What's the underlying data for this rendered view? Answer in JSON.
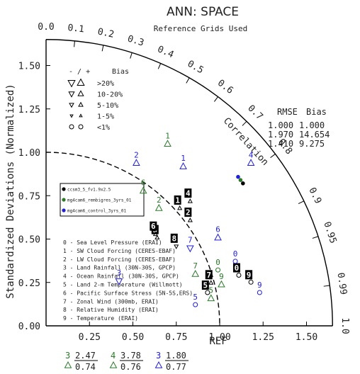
{
  "chart_data": {
    "type": "scatter",
    "title": "ANN: SPACE",
    "subtitle": "Reference Grids Used",
    "ylabel": "Standardized Deviations (Normalized)",
    "xlabel": "REF",
    "arc_label": "Correlation",
    "xlim": [
      0,
      1.65
    ],
    "ylim": [
      0,
      1.65
    ],
    "x_ticks": [
      "0.25",
      "0.50",
      "0.75",
      "1.00",
      "1.25",
      "1.50"
    ],
    "y_ticks": [
      "0.00",
      "0.25",
      "0.50",
      "0.75",
      "1.00",
      "1.25",
      "1.50"
    ],
    "corr_ticks": [
      {
        "r": 0.0,
        "label": "0.0"
      },
      {
        "r": 0.1,
        "label": "0.1"
      },
      {
        "r": 0.2,
        "label": "0.2"
      },
      {
        "r": 0.3,
        "label": "0.3"
      },
      {
        "r": 0.4,
        "label": "0.4"
      },
      {
        "r": 0.5,
        "label": "0.5"
      },
      {
        "r": 0.6,
        "label": "0.6"
      },
      {
        "r": 0.7,
        "label": "0.7"
      },
      {
        "r": 0.8,
        "label": "0.8"
      },
      {
        "r": 0.9,
        "label": "0.9"
      },
      {
        "r": 0.95,
        "label": "0.95"
      },
      {
        "r": 0.99,
        "label": "0.99"
      },
      {
        "r": 1.0,
        "label": "1.0"
      }
    ],
    "ref_circle_radius": 1.0,
    "bias_legend": {
      "header_sign": "- / +",
      "header_label": "Bias",
      "rows": [
        {
          "label": ">20%",
          "size": 9
        },
        {
          "label": "10-20%",
          "size": 7
        },
        {
          "label": "5-10%",
          "size": 5.5
        },
        {
          "label": "1-5%",
          "size": 3.5
        },
        {
          "label": "<1%",
          "size": 3,
          "circle": true
        }
      ]
    },
    "rmse_bias": {
      "header_rmse": "RMSE",
      "header_bias": "Bias",
      "rows": [
        {
          "color": "#000000",
          "rmse": "1.000",
          "bias": "1.000",
          "corr": 0.81
        },
        {
          "color": "#2a7a2a",
          "rmse": "1.970",
          "bias": "14.654",
          "corr": 0.8
        },
        {
          "color": "#1f1fd6",
          "rmse": "1.410",
          "bias": "9.275",
          "corr": 0.79
        }
      ]
    },
    "series": [
      {
        "name": "ccsm3_5_fv1.9x2.5",
        "color": "#000000"
      },
      {
        "name": "mg4cam6_rembigres_3yrs_01",
        "color": "#2a7a2a"
      },
      {
        "name": "mg4cam6_control_3yrs_01",
        "color": "#1f1fd6"
      }
    ],
    "variables": [
      "0 - Sea Level Pressure (ERAI)",
      "1 - SW Cloud Forcing (CERES-EBAF)",
      "2 - LW Cloud Forcing (CERES-EBAF)",
      "3 - Land Rainfall (30N-30S, GPCP)",
      "4 - Ocean Rainfall (30N-30S, GPCP)",
      "5 - Land 2-m Temperature (Willmott)",
      "6 - Pacific Surface Stress (5N-5S,ERS)",
      "7 - Zonal Wind (300mb, ERAI)",
      "8 - Relative Humidity (ERAI)",
      "9 - Temperature (ERAI)"
    ],
    "points": [
      {
        "s": 0,
        "v": "0",
        "x": 1.11,
        "y": 0.3,
        "m": "circle"
      },
      {
        "s": 0,
        "v": "1",
        "x": 0.77,
        "y": 0.69,
        "m": "up"
      },
      {
        "s": 0,
        "v": "2",
        "x": 0.83,
        "y": 0.62,
        "m": "up"
      },
      {
        "s": 0,
        "v": "3",
        "x": 0.64,
        "y": 0.52,
        "m": "up"
      },
      {
        "s": 0,
        "v": "4",
        "x": 0.83,
        "y": 0.73,
        "m": "up"
      },
      {
        "s": 0,
        "v": "5",
        "x": 0.93,
        "y": 0.2,
        "m": "circle"
      },
      {
        "s": 0,
        "v": "6",
        "x": 0.63,
        "y": 0.54,
        "m": "up"
      },
      {
        "s": 0,
        "v": "7",
        "x": 0.95,
        "y": 0.26,
        "m": "up"
      },
      {
        "s": 0,
        "v": "8",
        "x": 0.75,
        "y": 0.47,
        "m": "down"
      },
      {
        "s": 0,
        "v": "9",
        "x": 1.18,
        "y": 0.26,
        "m": "circle"
      },
      {
        "s": 1,
        "v": "2",
        "x": 0.65,
        "y": 0.69,
        "m": "up"
      },
      {
        "s": 1,
        "v": "5",
        "x": 0.95,
        "y": 0.17,
        "m": "up"
      },
      {
        "s": 1,
        "v": "6",
        "x": 0.56,
        "y": 0.79,
        "m": "up"
      },
      {
        "s": 1,
        "v": "7",
        "x": 0.86,
        "y": 0.31,
        "m": "up"
      },
      {
        "s": 1,
        "v": "9",
        "x": 1.01,
        "y": 0.25,
        "m": "up"
      },
      {
        "s": 1,
        "v": "0",
        "x": 0.99,
        "y": 0.33,
        "m": "circle"
      },
      {
        "s": 1,
        "v": "1",
        "x": 0.7,
        "y": 1.06,
        "m": "up"
      },
      {
        "s": 2,
        "v": "0",
        "x": 1.09,
        "y": 0.38,
        "m": "circle"
      },
      {
        "s": 2,
        "v": "1",
        "x": 0.79,
        "y": 0.93,
        "m": "up"
      },
      {
        "s": 2,
        "v": "2",
        "x": 0.52,
        "y": 0.95,
        "m": "up"
      },
      {
        "s": 2,
        "v": "3",
        "x": 0.42,
        "y": 0.27,
        "m": "down"
      },
      {
        "s": 2,
        "v": "4",
        "x": 1.18,
        "y": 0.95,
        "m": "up"
      },
      {
        "s": 2,
        "v": "5",
        "x": 0.86,
        "y": 0.13,
        "m": "circle"
      },
      {
        "s": 2,
        "v": "6",
        "x": 0.99,
        "y": 0.52,
        "m": "up"
      },
      {
        "s": 2,
        "v": "7",
        "x": 0.83,
        "y": 0.46,
        "m": "down"
      },
      {
        "s": 2,
        "v": "9",
        "x": 1.23,
        "y": 0.2,
        "m": "circle"
      }
    ],
    "footer": [
      {
        "color": "#2a7a2a",
        "v": "3",
        "top": "2.47",
        "bottom": "0.74"
      },
      {
        "color": "#2a7a2a",
        "v": "4",
        "top": "3.78",
        "bottom": "0.76"
      },
      {
        "color": "#1f1fd6",
        "v": "3",
        "top": "1.80",
        "bottom": "0.77"
      }
    ]
  }
}
